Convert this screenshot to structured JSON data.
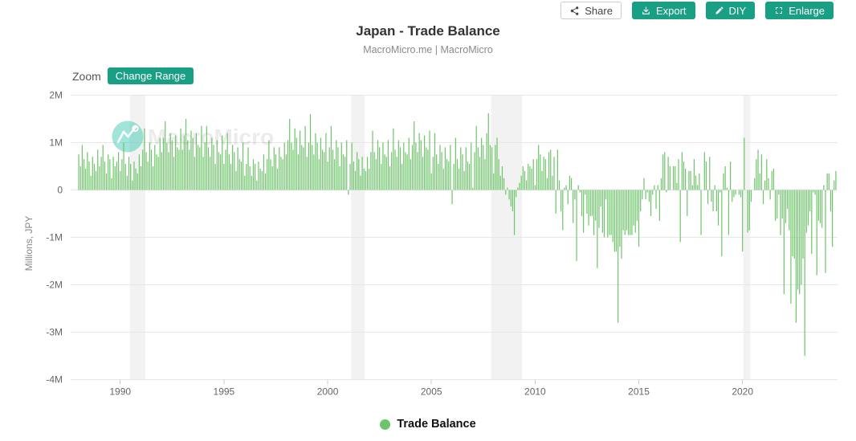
{
  "header": {
    "title": "Japan - Trade Balance",
    "subtitle": "MacroMicro.me | MacroMicro",
    "buttons": [
      {
        "label": "Share",
        "icon": "share-icon",
        "style": "light"
      },
      {
        "label": "Export",
        "icon": "download-icon",
        "style": "teal"
      },
      {
        "label": "DIY",
        "icon": "pencil-icon",
        "style": "teal"
      },
      {
        "label": "Enlarge",
        "icon": "expand-icon",
        "style": "teal"
      }
    ]
  },
  "toolbar": {
    "zoom_label": "Zoom",
    "change_range_label": "Change Range"
  },
  "watermark": {
    "text": "MacroMicro",
    "logo": "macromicro-logo-icon"
  },
  "legend": {
    "label": "Trade Balance",
    "color": "#6ec46a"
  },
  "colors": {
    "teal": "#19a084",
    "bar": "#6ec46a",
    "recession_band": "#f2f2f2",
    "grid": "#e7e7e7",
    "axis_text": "#666666",
    "title_text": "#333333",
    "subtitle_text": "#8a8a8a"
  },
  "chart_data": {
    "type": "bar",
    "title": "Japan - Trade Balance",
    "source_line": "MacroMicro.me | MacroMicro",
    "series_name": "Trade Balance",
    "bar_color": "#6ec46a",
    "ylabel": "Millions, JPY",
    "ylim": [
      -4,
      2
    ],
    "yticks": [
      2,
      1,
      0,
      -1,
      -2,
      -3,
      -4
    ],
    "ytick_labels": [
      "2M",
      "1M",
      "0",
      "-1M",
      "-2M",
      "-3M",
      "-4M"
    ],
    "xticks": [
      1990,
      1995,
      2000,
      2005,
      2010,
      2015,
      2020
    ],
    "xtick_labels": [
      "1990",
      "1995",
      "2000",
      "2005",
      "2010",
      "2015",
      "2020"
    ],
    "grid": "horizontal",
    "legend_position": "bottom",
    "values_unit": "axis M units (1M = 1,000,000 million JPY)",
    "start_month": "1988-01",
    "monthly_by_year": {
      "1988": [
        0.75,
        0.5,
        0.95,
        0.65,
        0.45,
        0.8,
        0.6,
        0.3,
        0.7,
        0.55,
        0.4,
        0.85
      ],
      "1989": [
        0.5,
        0.7,
        0.95,
        0.6,
        0.35,
        0.75,
        0.65,
        0.25,
        0.7,
        0.5,
        0.6,
        0.8
      ],
      "1990": [
        0.4,
        0.65,
        1.0,
        0.55,
        0.3,
        0.7,
        0.55,
        0.2,
        0.6,
        0.45,
        0.35,
        0.75
      ],
      "1991": [
        0.5,
        0.85,
        1.3,
        0.8,
        0.6,
        1.0,
        0.85,
        0.5,
        0.95,
        0.75,
        0.7,
        1.1
      ],
      "1992": [
        0.8,
        1.1,
        1.45,
        1.0,
        0.8,
        1.2,
        1.05,
        0.7,
        1.15,
        0.9,
        0.85,
        1.3
      ],
      "1993": [
        0.85,
        1.15,
        1.5,
        1.05,
        0.85,
        1.25,
        1.1,
        0.7,
        1.2,
        0.95,
        0.9,
        1.35
      ],
      "1994": [
        0.7,
        1.0,
        1.35,
        0.9,
        0.7,
        1.1,
        0.95,
        0.55,
        1.05,
        0.8,
        0.75,
        1.15
      ],
      "1995": [
        0.55,
        0.85,
        1.2,
        0.75,
        0.55,
        0.95,
        0.8,
        0.4,
        0.9,
        0.65,
        0.6,
        1.0
      ],
      "1996": [
        0.3,
        0.55,
        0.9,
        0.5,
        0.3,
        0.65,
        0.55,
        0.2,
        0.6,
        0.45,
        0.4,
        0.75
      ],
      "1997": [
        0.35,
        0.65,
        1.05,
        0.65,
        0.5,
        0.9,
        0.75,
        0.45,
        0.9,
        0.7,
        0.65,
        1.0
      ],
      "1998": [
        0.75,
        1.05,
        1.5,
        1.0,
        0.85,
        1.3,
        1.1,
        0.75,
        1.25,
        0.95,
        0.9,
        1.35
      ],
      "1999": [
        0.7,
        1.0,
        1.6,
        0.95,
        0.75,
        1.2,
        1.0,
        0.65,
        1.1,
        0.85,
        0.8,
        1.2
      ],
      "2000": [
        0.6,
        0.9,
        1.35,
        0.85,
        0.65,
        1.05,
        0.9,
        0.5,
        1.0,
        0.75,
        0.7,
        1.05
      ],
      "2001": [
        -0.1,
        0.55,
        1.0,
        0.6,
        0.4,
        0.8,
        0.65,
        0.3,
        0.7,
        0.45,
        0.4,
        0.7
      ],
      "2002": [
        0.45,
        0.8,
        1.25,
        0.8,
        0.65,
        1.05,
        0.9,
        0.55,
        1.0,
        0.75,
        0.7,
        1.05
      ],
      "2003": [
        0.5,
        0.8,
        1.3,
        0.85,
        0.7,
        1.05,
        0.9,
        0.55,
        1.0,
        0.8,
        0.75,
        1.1
      ],
      "2004": [
        0.65,
        0.95,
        1.45,
        1.0,
        0.8,
        1.2,
        1.05,
        0.7,
        1.15,
        0.9,
        0.85,
        1.25
      ],
      "2005": [
        0.35,
        0.7,
        1.2,
        0.75,
        0.55,
        0.95,
        0.8,
        0.45,
        0.9,
        0.65,
        0.6,
        0.95
      ],
      "2006": [
        -0.3,
        0.55,
        1.1,
        0.65,
        0.45,
        0.9,
        0.75,
        0.4,
        0.9,
        0.6,
        0.55,
        1.0
      ],
      "2007": [
        0.05,
        0.8,
        1.35,
        0.9,
        0.7,
        1.1,
        0.95,
        0.65,
        1.2,
        1.62,
        0.95,
        0.9
      ],
      "2008": [
        0.35,
        0.95,
        1.1,
        0.65,
        0.3,
        0.5,
        0.25,
        -0.1,
        0.05,
        -0.2,
        -0.35,
        -0.45
      ],
      "2009": [
        -0.95,
        -0.15,
        0.05,
        0.15,
        0.3,
        0.5,
        0.4,
        0.2,
        0.55,
        0.5,
        0.45,
        0.65
      ],
      "2010": [
        0.1,
        0.65,
        0.95,
        0.75,
        0.4,
        0.7,
        0.65,
        0.25,
        0.8,
        0.85,
        0.3,
        0.7
      ],
      "2011": [
        -0.5,
        0.85,
        0.2,
        -0.45,
        -0.85,
        0.05,
        0.1,
        -0.3,
        0.3,
        0.25,
        -0.7,
        -0.2
      ],
      "2012": [
        -1.5,
        0.1,
        -0.05,
        -0.55,
        -0.9,
        -0.1,
        -0.5,
        -0.75,
        -0.55,
        -0.55,
        -0.95,
        -0.65
      ],
      "2013": [
        -1.65,
        -0.8,
        -0.35,
        -0.9,
        -1.0,
        -0.2,
        -1.0,
        -0.95,
        -0.95,
        -1.1,
        -1.3,
        -1.3
      ],
      "2014": [
        -2.8,
        -1.2,
        -1.45,
        -0.85,
        -0.95,
        -0.85,
        -0.95,
        -0.95,
        -0.95,
        -0.75,
        -0.9,
        -0.65
      ],
      "2015": [
        -1.2,
        -0.45,
        -0.2,
        0.25,
        -0.2,
        -0.05,
        -0.25,
        -0.55,
        -0.1,
        0.1,
        -0.4,
        0.1
      ],
      "2016": [
        -0.65,
        0.25,
        0.75,
        0.8,
        -0.05,
        0.7,
        0.5,
        0.0,
        0.5,
        0.5,
        0.15,
        0.65
      ],
      "2017": [
        -1.1,
        0.8,
        0.6,
        0.45,
        -0.55,
        0.4,
        0.4,
        0.1,
        0.65,
        0.3,
        0.1,
        0.35
      ],
      "2018": [
        -0.95,
        0.0,
        0.8,
        0.6,
        -0.3,
        0.7,
        -0.25,
        -0.45,
        0.1,
        -0.45,
        -0.75,
        -0.05
      ],
      "2019": [
        -1.4,
        0.35,
        0.5,
        0.05,
        -0.95,
        0.6,
        -0.25,
        -0.15,
        -0.1,
        0.0,
        -0.1,
        -0.15
      ],
      "2020": [
        -1.3,
        1.1,
        0.0,
        -0.9,
        -0.85,
        -0.25,
        0.0,
        0.25,
        0.65,
        0.85,
        0.35,
        0.75
      ],
      "2021": [
        -0.3,
        0.2,
        0.65,
        0.25,
        -0.2,
        0.4,
        0.45,
        -0.65,
        -0.6,
        -0.1,
        -0.95,
        -0.6
      ],
      "2022": [
        -2.2,
        -0.7,
        -0.4,
        -0.85,
        -2.4,
        -1.4,
        -1.45,
        -2.8,
        -2.1,
        -2.2,
        -2.0,
        -1.45
      ],
      "2023": [
        -3.5,
        -0.9,
        -0.75,
        -0.45,
        -1.35,
        -0.05,
        -0.1,
        -1.8,
        -0.65,
        -0.7,
        -0.8,
        0.1
      ],
      "2024": [
        -1.75,
        0.35,
        0.35,
        -0.45,
        -1.2,
        0.2,
        0.4
      ]
    },
    "recession_bands": [
      [
        1990.5,
        1991.25
      ],
      [
        2001.17,
        2001.83
      ],
      [
        2007.92,
        2009.42
      ],
      [
        2020.08,
        2020.42
      ]
    ]
  }
}
